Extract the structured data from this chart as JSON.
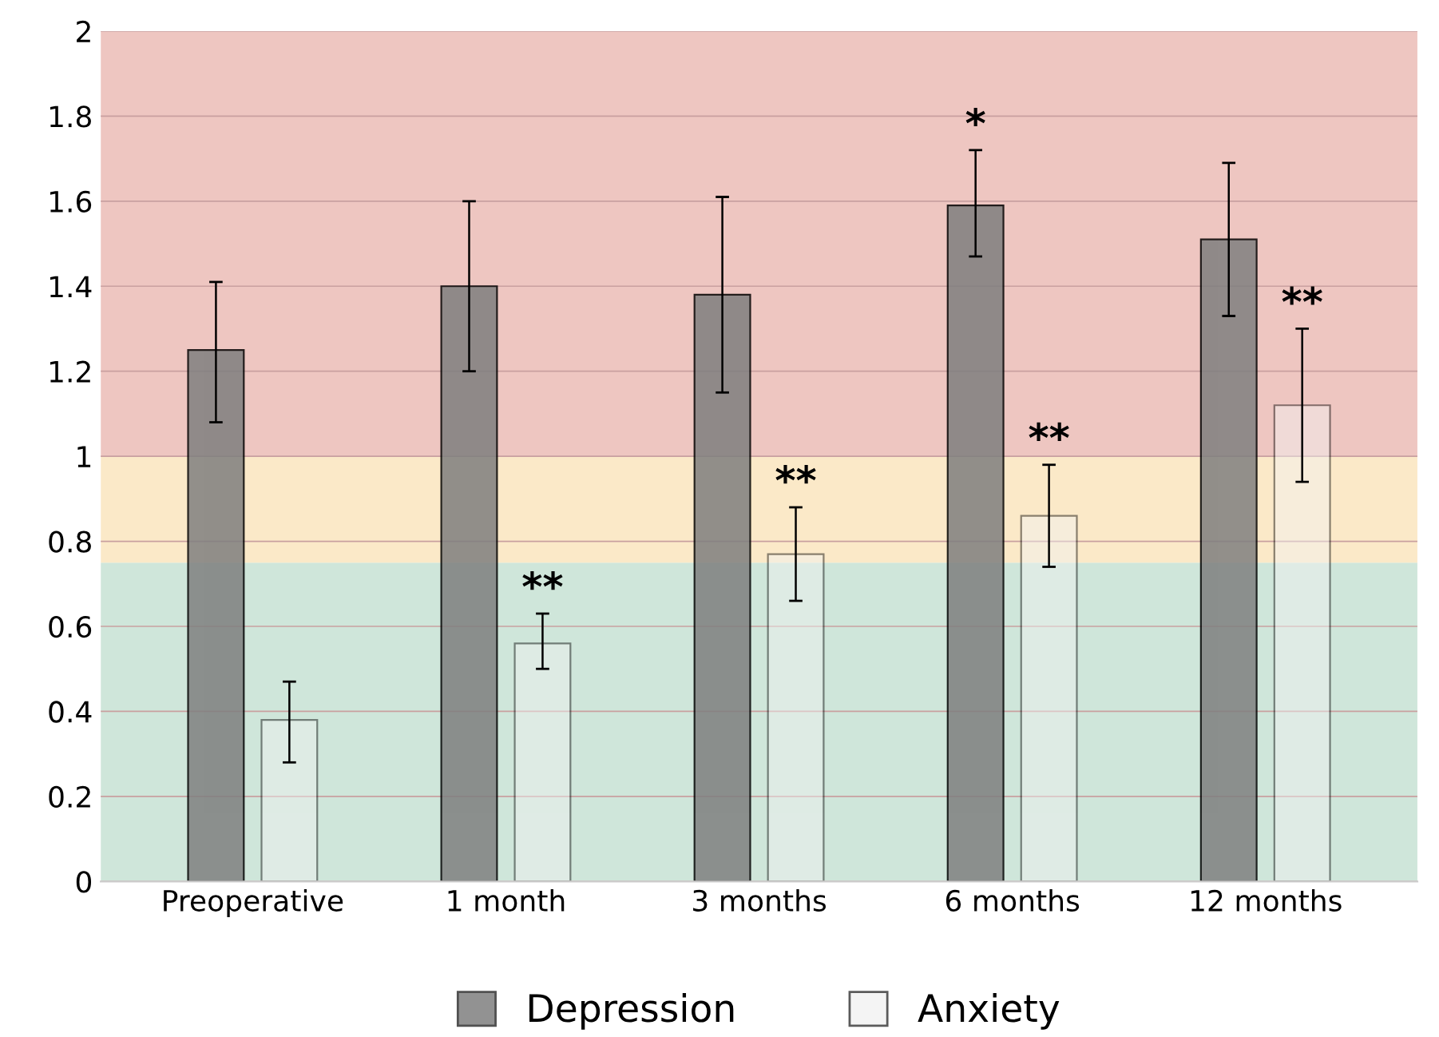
{
  "chart_data": {
    "type": "bar",
    "categories": [
      "Preoperative",
      "1 month",
      "3 months",
      "6 months",
      "12 months"
    ],
    "series": [
      {
        "name": "Depression",
        "color": "#7f7f7f",
        "values": [
          1.25,
          1.4,
          1.38,
          1.59,
          1.51
        ],
        "errors": [
          [
            1.08,
            1.41
          ],
          [
            1.2,
            1.6
          ],
          [
            1.15,
            1.61
          ],
          [
            1.47,
            1.72
          ],
          [
            1.33,
            1.69
          ]
        ],
        "value_labels": [
          null,
          null,
          null,
          "*",
          null
        ]
      },
      {
        "name": "Anxiety",
        "color": "#f2f2f2",
        "values": [
          0.38,
          0.56,
          0.77,
          0.86,
          1.12
        ],
        "errors": [
          [
            0.28,
            0.47
          ],
          [
            0.5,
            0.63
          ],
          [
            0.66,
            0.88
          ],
          [
            0.74,
            0.98
          ],
          [
            0.94,
            1.3
          ]
        ],
        "value_labels": [
          null,
          "**",
          "**",
          "**",
          "**"
        ]
      }
    ],
    "ylim": [
      0,
      2
    ],
    "yticks": [
      0,
      0.2,
      0.4,
      0.6,
      0.8,
      1,
      1.2,
      1.4,
      1.6,
      1.8,
      2
    ],
    "grid": "y",
    "legend": "bottom",
    "bands": [
      {
        "axis": "y",
        "from": 0,
        "to": 0.75,
        "color": "#cfe6da"
      },
      {
        "axis": "y",
        "from": 0.75,
        "to": 1,
        "color": "#fbe9c8"
      },
      {
        "axis": "y",
        "from": 1,
        "to": 2,
        "color": "#eec6c1"
      }
    ]
  }
}
